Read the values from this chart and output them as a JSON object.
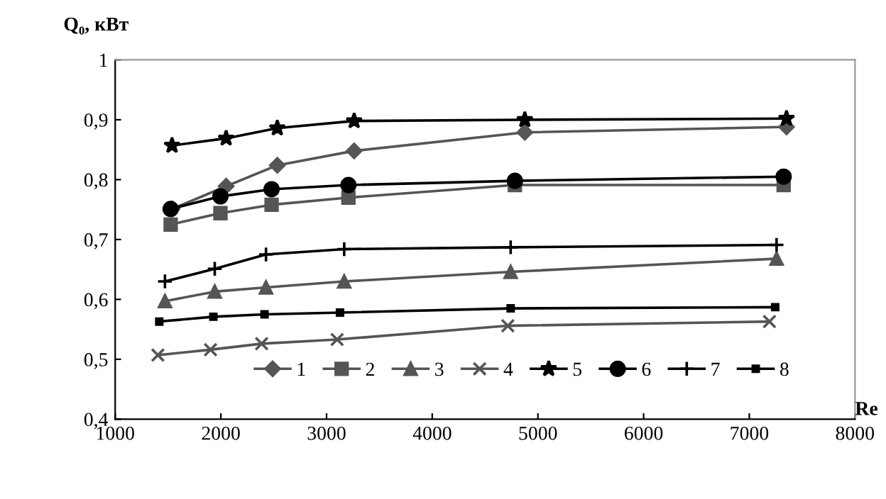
{
  "chart_data": {
    "type": "line",
    "xlabel": "Re",
    "ylabel": "Q₀, кВт",
    "xlim": [
      1000,
      8000
    ],
    "xticks": [
      1000,
      2000,
      3000,
      4000,
      5000,
      6000,
      7000,
      8000
    ],
    "ylim": [
      0.4,
      1
    ],
    "yticks": [
      {
        "value": 0.4,
        "label": "0,4"
      },
      {
        "value": 0.5,
        "label": "0,5"
      },
      {
        "value": 0.6,
        "label": "0,6"
      },
      {
        "value": 0.7,
        "label": "0,7"
      },
      {
        "value": 0.8,
        "label": "0,8"
      },
      {
        "value": 0.9,
        "label": "0,9"
      },
      {
        "value": 1,
        "label": "1"
      }
    ],
    "grid": false,
    "legend": "bottom",
    "line_style": "solid",
    "series": [
      {
        "name": "1",
        "color": "#555555",
        "marker": "diamond",
        "x": [
          1538,
          2050,
          2534,
          3261,
          4876,
          7352
        ],
        "values": [
          0.751,
          0.789,
          0.824,
          0.848,
          0.879,
          0.888
        ]
      },
      {
        "name": "2",
        "color": "#555555",
        "marker": "square",
        "x": [
          1525,
          1996,
          2480,
          3207,
          4782,
          7325
        ],
        "values": [
          0.725,
          0.744,
          0.758,
          0.77,
          0.791,
          0.791
        ]
      },
      {
        "name": "3",
        "color": "#555555",
        "marker": "triangle",
        "x": [
          1471,
          1942,
          2427,
          3167,
          4742,
          7258
        ],
        "values": [
          0.597,
          0.613,
          0.62,
          0.63,
          0.646,
          0.668
        ]
      },
      {
        "name": "4",
        "color": "#555555",
        "marker": "cross",
        "x": [
          1404,
          1902,
          2386,
          3100,
          4715,
          7191
        ],
        "values": [
          0.507,
          0.516,
          0.526,
          0.533,
          0.556,
          0.563
        ]
      },
      {
        "name": "5",
        "color": "#000000",
        "marker": "star",
        "x": [
          1538,
          2050,
          2534,
          3261,
          4876,
          7352
        ],
        "values": [
          0.857,
          0.869,
          0.886,
          0.898,
          0.9,
          0.902
        ]
      },
      {
        "name": "6",
        "color": "#000000",
        "marker": "circle",
        "x": [
          1525,
          1996,
          2480,
          3207,
          4782,
          7325
        ],
        "values": [
          0.751,
          0.772,
          0.784,
          0.791,
          0.798,
          0.805
        ]
      },
      {
        "name": "7",
        "color": "#000000",
        "marker": "plus",
        "x": [
          1471,
          1942,
          2427,
          3167,
          4742,
          7258
        ],
        "values": [
          0.63,
          0.651,
          0.675,
          0.684,
          0.687,
          0.691
        ]
      },
      {
        "name": "8",
        "color": "#000000",
        "marker": "square",
        "x": [
          1417,
          1929,
          2413,
          3127,
          4742,
          7245
        ],
        "values": [
          0.563,
          0.571,
          0.575,
          0.578,
          0.585,
          0.587
        ]
      }
    ]
  }
}
